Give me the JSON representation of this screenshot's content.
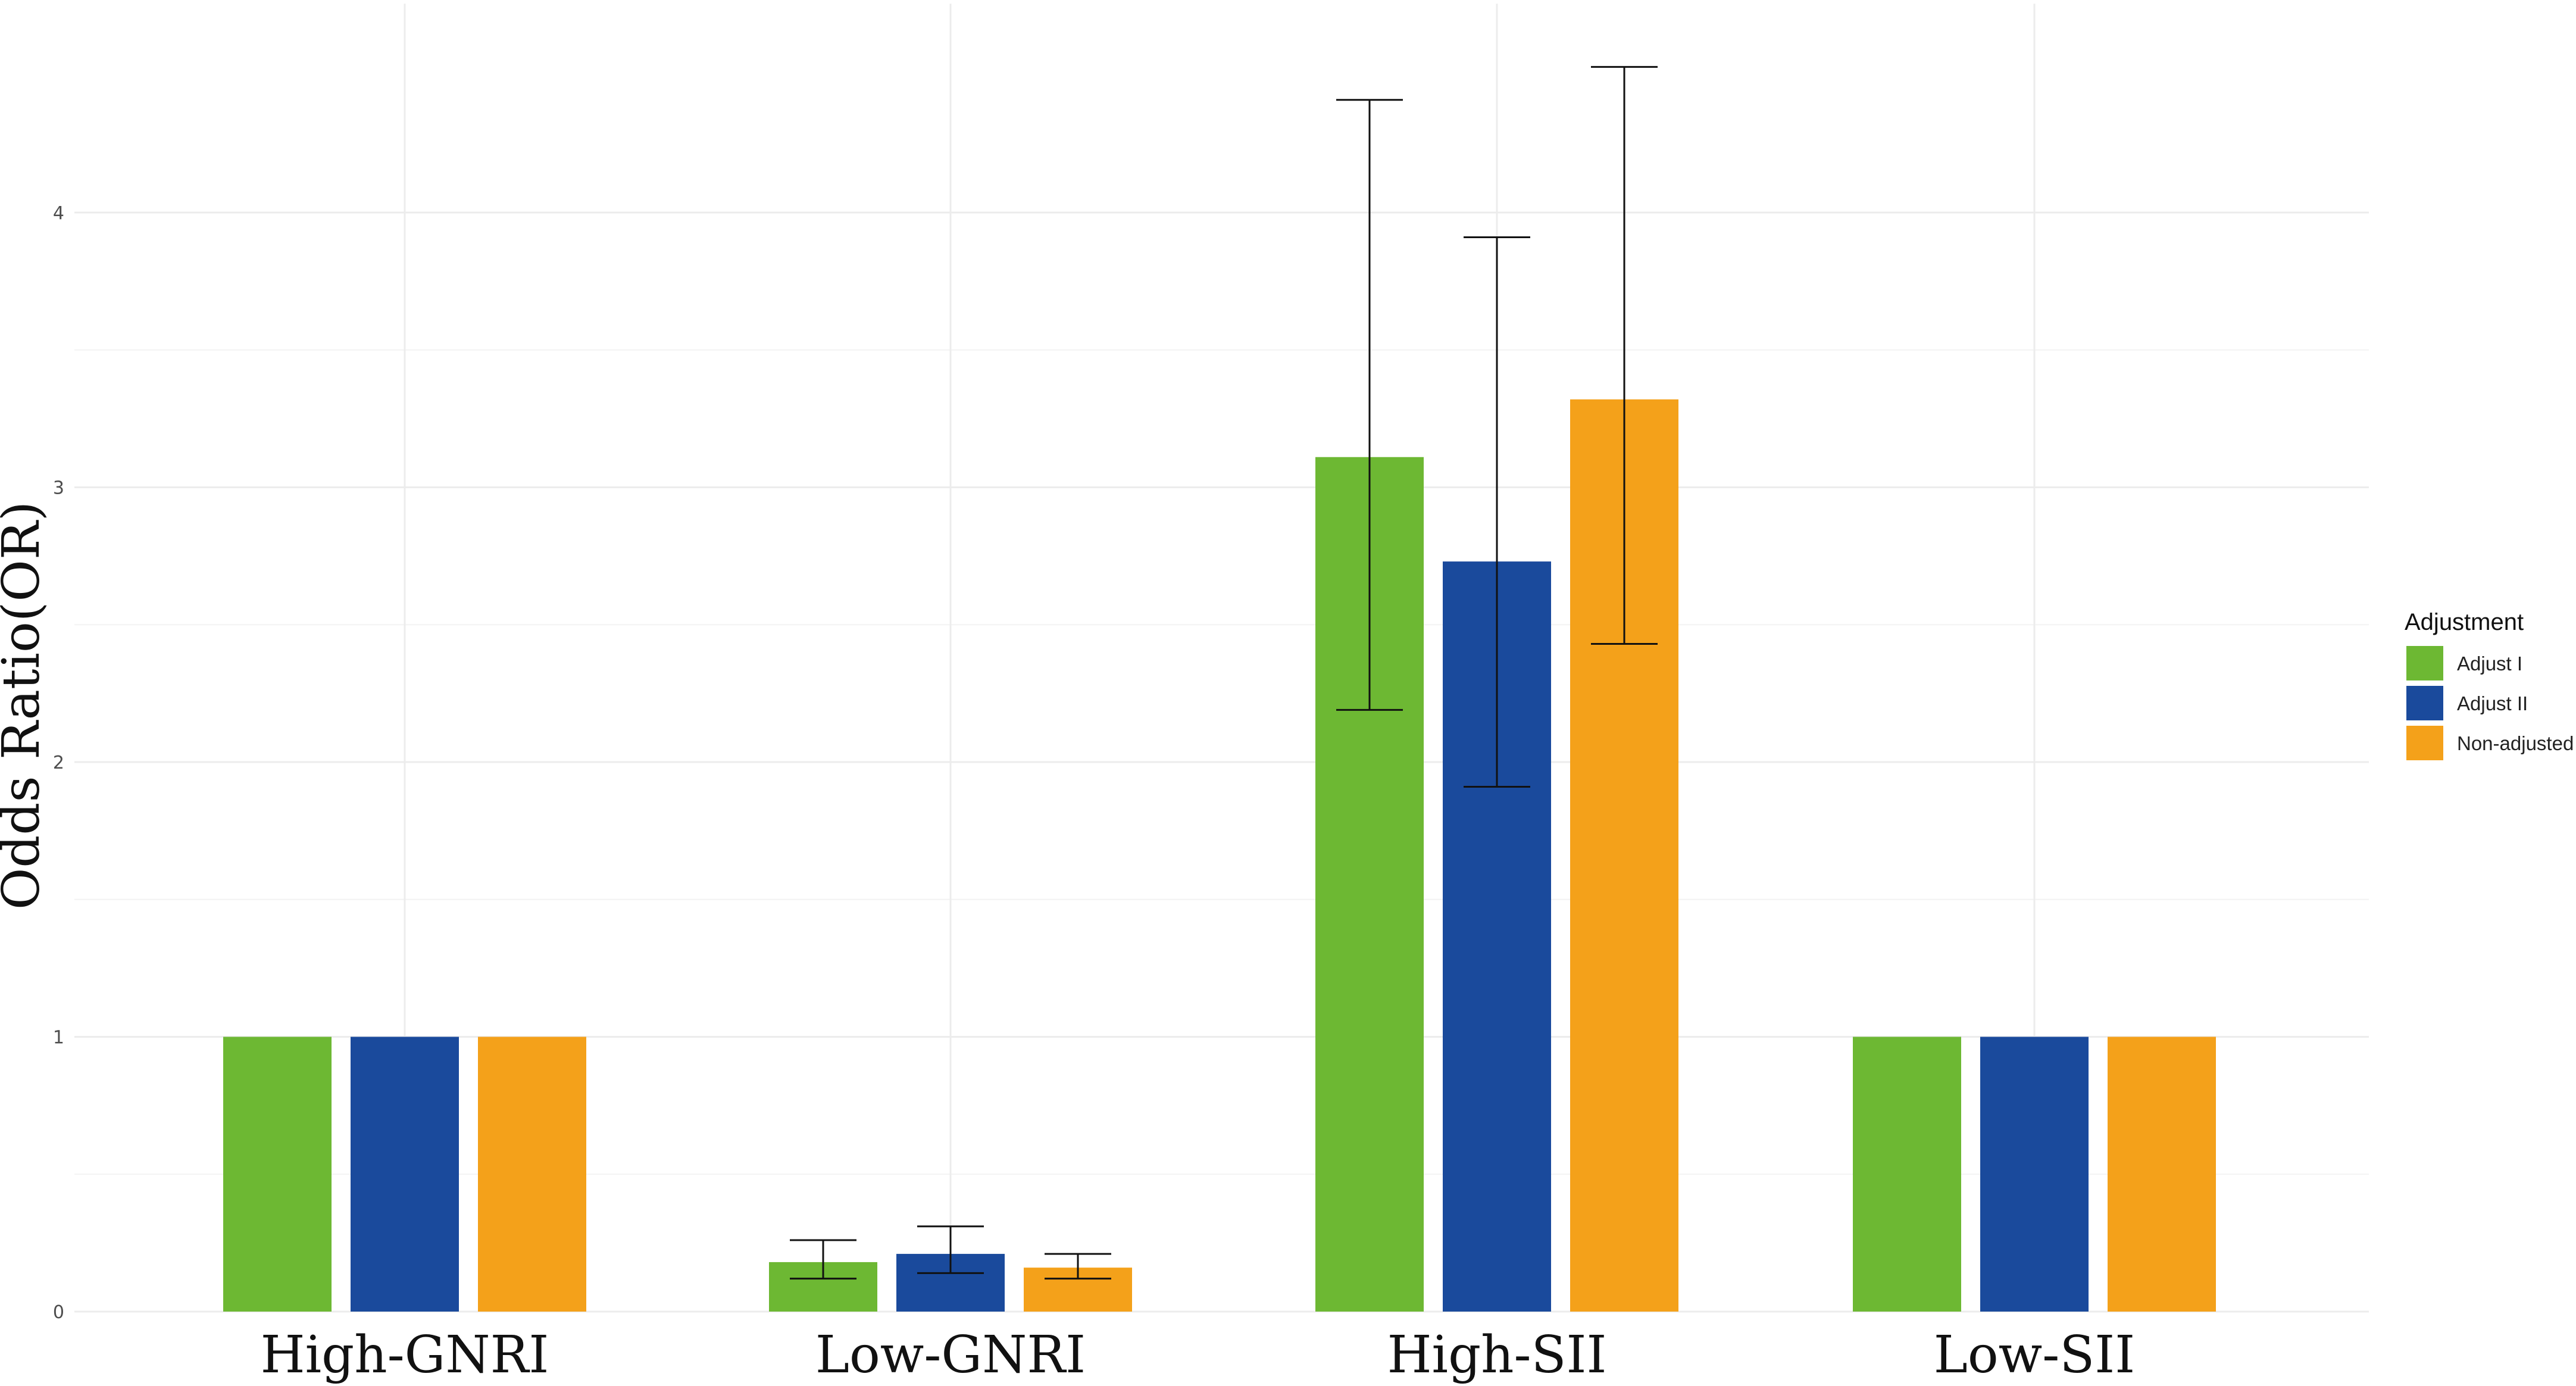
{
  "chart_data": {
    "type": "bar",
    "ylabel": "Odds Ratio(OR)",
    "xlabel": "",
    "categories": [
      "High-GNRI",
      "Low-GNRI",
      "High-SII",
      "Low-SII"
    ],
    "ylim": [
      0,
      4.5
    ],
    "yticks": [
      0,
      1,
      2,
      3,
      4
    ],
    "grid": true,
    "legend": {
      "title": "Adjustment",
      "position": "right"
    },
    "series": [
      {
        "name": "Adjust I",
        "color": "#6DB833",
        "values": [
          1.0,
          0.18,
          3.11,
          1.0
        ],
        "ci_lower": [
          null,
          0.12,
          2.19,
          null
        ],
        "ci_upper": [
          null,
          0.26,
          4.41,
          null
        ]
      },
      {
        "name": "Adjust II",
        "color": "#1A4A9C",
        "values": [
          1.0,
          0.21,
          2.73,
          1.0
        ],
        "ci_lower": [
          null,
          0.14,
          1.91,
          null
        ],
        "ci_upper": [
          null,
          0.31,
          3.91,
          null
        ]
      },
      {
        "name": "Non-adjusted",
        "color": "#F4A11A",
        "values": [
          1.0,
          0.16,
          3.32,
          1.0
        ],
        "ci_lower": [
          null,
          0.12,
          2.43,
          null
        ],
        "ci_upper": [
          null,
          0.21,
          4.53,
          null
        ]
      }
    ]
  }
}
